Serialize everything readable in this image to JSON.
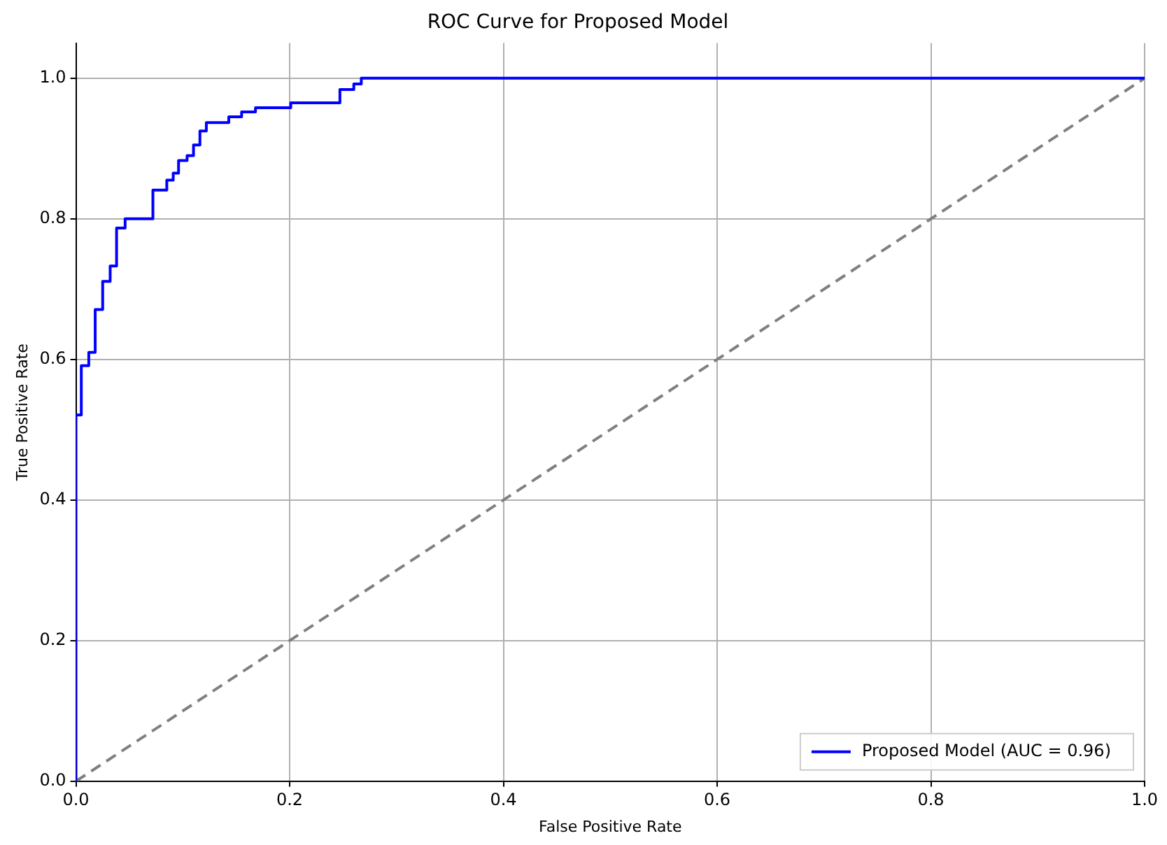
{
  "chart_data": {
    "type": "line",
    "title": "ROC Curve for Proposed Model",
    "xlabel": "False Positive Rate",
    "ylabel": "True Positive Rate",
    "xlim": [
      0,
      1
    ],
    "ylim": [
      0,
      1.05
    ],
    "xticks": [
      {
        "value": 0,
        "label": "0.0"
      },
      0.2,
      0.4,
      0.6,
      0.8,
      {
        "value": 1,
        "label": "1.0"
      }
    ],
    "yticks": [
      {
        "value": 0,
        "label": "0.0"
      },
      0.2,
      0.4,
      0.6,
      0.8,
      {
        "value": 1,
        "label": "1.0"
      }
    ],
    "grid": true,
    "legend": "bottom right",
    "series": [
      {
        "name": "Proposed Model (AUC = 0.96)",
        "type": "step",
        "color": "#0000ff",
        "x": [
          0,
          0,
          0.005,
          0.012,
          0.018,
          0.025,
          0.032,
          0.038,
          0.046,
          0.072,
          0.085,
          0.091,
          0.096,
          0.104,
          0.11,
          0.116,
          0.122,
          0.143,
          0.155,
          0.168,
          0.201,
          0.247,
          0.26,
          0.267,
          0.293,
          1
        ],
        "values": [
          0,
          0.473,
          0.521,
          0.591,
          0.61,
          0.671,
          0.711,
          0.733,
          0.787,
          0.8,
          0.841,
          0.855,
          0.865,
          0.883,
          0.89,
          0.905,
          0.925,
          0.937,
          0.945,
          0.952,
          0.958,
          0.965,
          0.984,
          0.992,
          1,
          1
        ]
      },
      {
        "type": "line",
        "color": "#808080",
        "line_style": "dashed",
        "x": [
          0,
          1
        ],
        "values": [
          0,
          1
        ]
      }
    ]
  }
}
